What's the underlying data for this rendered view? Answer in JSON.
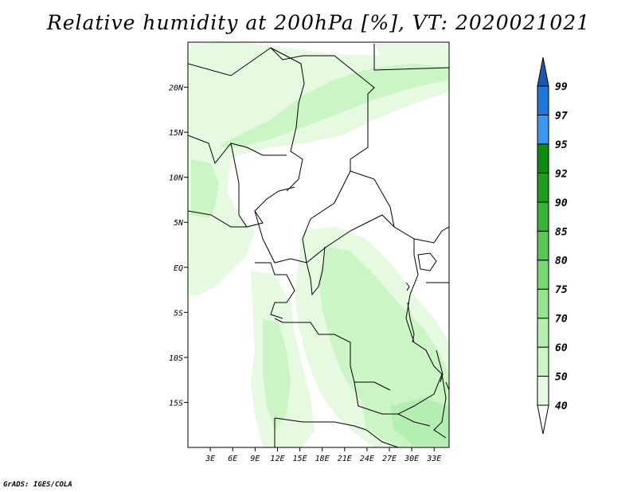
{
  "title": "Relative humidity at 200hPa [%], VT: 2020021021",
  "credit": "GrADS: IGES/COLA",
  "map": {
    "lon_range": [
      0,
      35
    ],
    "lat_range": [
      -20,
      25
    ],
    "lat_ticks": [
      {
        "value": 20,
        "label": "20N"
      },
      {
        "value": 15,
        "label": "15N"
      },
      {
        "value": 10,
        "label": "10N"
      },
      {
        "value": 5,
        "label": "5N"
      },
      {
        "value": 0,
        "label": "EQ"
      },
      {
        "value": -5,
        "label": "5S"
      },
      {
        "value": -10,
        "label": "10S"
      },
      {
        "value": -15,
        "label": "15S"
      }
    ],
    "lon_ticks": [
      {
        "value": 3,
        "label": "3E"
      },
      {
        "value": 6,
        "label": "6E"
      },
      {
        "value": 9,
        "label": "9E"
      },
      {
        "value": 12,
        "label": "12E"
      },
      {
        "value": 15,
        "label": "15E"
      },
      {
        "value": 18,
        "label": "18E"
      },
      {
        "value": 21,
        "label": "21E"
      },
      {
        "value": 24,
        "label": "24E"
      },
      {
        "value": 27,
        "label": "27E"
      },
      {
        "value": 30,
        "label": "30E"
      },
      {
        "value": 33,
        "label": "33E"
      }
    ]
  },
  "colorbar": {
    "levels": [
      "40",
      "50",
      "60",
      "70",
      "75",
      "80",
      "85",
      "90",
      "92",
      "95",
      "97",
      "99"
    ],
    "colors": [
      "#ffffff",
      "#e6fae1",
      "#cbf5c4",
      "#b4eeb1",
      "#95e48f",
      "#78d974",
      "#56c853",
      "#38b335",
      "#1e9d1e",
      "#0f8a10",
      "#3f96ee",
      "#2176d9",
      "#1759b5"
    ]
  },
  "colors": {
    "rh_50": "#e6fae1",
    "rh_60": "#cbf5c4",
    "rh_70": "#b4eeb1",
    "border": "#000000"
  }
}
